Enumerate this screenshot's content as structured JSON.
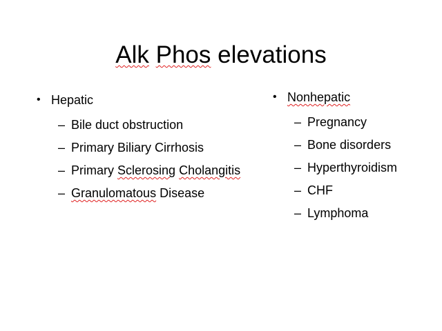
{
  "slide": {
    "title_parts": [
      "Alk",
      "Phos",
      "elevations"
    ],
    "left": {
      "bullet_marker": "•",
      "heading": "Hepatic",
      "dash_marker": "–",
      "items": [
        [
          "Bile duct obstruction"
        ],
        [
          "Primary Biliary Cirrhosis"
        ],
        [
          "Primary",
          "Sclerosing",
          "Cholangitis"
        ],
        [
          "Granulomatous",
          "Disease"
        ]
      ]
    },
    "right": {
      "bullet_marker": "•",
      "heading": "Nonhepatic",
      "dash_marker": "–",
      "items": [
        "Pregnancy",
        "Bone disorders",
        "Hyperthyroidism",
        "CHF",
        "Lymphoma"
      ]
    },
    "spellcheck_underline_color": "#e02020"
  }
}
